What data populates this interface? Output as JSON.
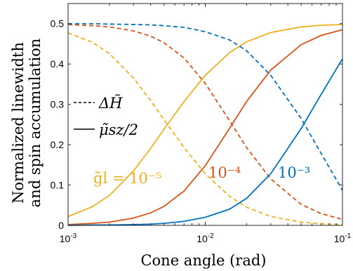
{
  "chart_data": {
    "type": "line",
    "title": "",
    "xlabel": "Cone angle (rad)",
    "ylabel_line1": "Normalized linewidth",
    "ylabel_line2": "and spin accumulation",
    "xscale": "log",
    "xlim": [
      0.001,
      0.1
    ],
    "ylim": [
      0,
      0.55
    ],
    "xticks": [
      {
        "value": 0.001,
        "base": "10",
        "exp": "-3"
      },
      {
        "value": 0.01,
        "base": "10",
        "exp": "-2"
      },
      {
        "value": 0.1,
        "base": "10",
        "exp": "-1"
      }
    ],
    "yticks": [
      {
        "value": 0,
        "label": "0"
      },
      {
        "value": 0.1,
        "label": "0.1"
      },
      {
        "value": 0.2,
        "label": "0.2"
      },
      {
        "value": 0.3,
        "label": "0.3"
      },
      {
        "value": 0.4,
        "label": "0.4"
      },
      {
        "value": 0.5,
        "label": "0.5"
      }
    ],
    "grid": false,
    "legend": {
      "placement": "middle-left",
      "entries": [
        {
          "style": "dashed",
          "label": "ΔH̃"
        },
        {
          "style": "solid",
          "label": "μ̃sz/2"
        }
      ]
    },
    "annotations": [
      {
        "text": "g̃l = 10⁻⁵",
        "color": "#EDB120"
      },
      {
        "text": "10⁻⁴",
        "color": "#D95319"
      },
      {
        "text": "10⁻³",
        "color": "#0072BD"
      }
    ],
    "series": [
      {
        "color": "#EDB120",
        "style": "solid",
        "x": [
          0.001,
          0.0015,
          0.002,
          0.003,
          0.004,
          0.005,
          0.007,
          0.01,
          0.015,
          0.02,
          0.03,
          0.05,
          0.07,
          0.1
        ],
        "values": [
          0.022,
          0.046,
          0.074,
          0.135,
          0.191,
          0.238,
          0.307,
          0.372,
          0.428,
          0.455,
          0.478,
          0.492,
          0.496,
          0.498
        ]
      },
      {
        "color": "#EDB120",
        "style": "dashed",
        "x": [
          0.001,
          0.0015,
          0.002,
          0.003,
          0.004,
          0.005,
          0.007,
          0.01,
          0.015,
          0.02,
          0.03,
          0.05,
          0.07,
          0.1
        ],
        "values": [
          0.477,
          0.454,
          0.426,
          0.365,
          0.309,
          0.262,
          0.193,
          0.128,
          0.072,
          0.045,
          0.022,
          0.008,
          0.004,
          0.002
        ]
      },
      {
        "color": "#D95319",
        "style": "solid",
        "x": [
          0.001,
          0.0015,
          0.002,
          0.003,
          0.004,
          0.005,
          0.007,
          0.01,
          0.015,
          0.02,
          0.03,
          0.05,
          0.07,
          0.1
        ],
        "values": [
          0.002,
          0.005,
          0.008,
          0.018,
          0.031,
          0.047,
          0.085,
          0.148,
          0.24,
          0.307,
          0.385,
          0.448,
          0.471,
          0.485
        ]
      },
      {
        "color": "#D95319",
        "style": "dashed",
        "x": [
          0.001,
          0.0015,
          0.002,
          0.003,
          0.004,
          0.005,
          0.007,
          0.01,
          0.015,
          0.02,
          0.03,
          0.05,
          0.07,
          0.1
        ],
        "values": [
          0.498,
          0.495,
          0.492,
          0.482,
          0.469,
          0.453,
          0.415,
          0.352,
          0.26,
          0.193,
          0.115,
          0.052,
          0.029,
          0.015
        ]
      },
      {
        "color": "#0072BD",
        "style": "solid",
        "x": [
          0.001,
          0.0015,
          0.002,
          0.003,
          0.004,
          0.005,
          0.007,
          0.01,
          0.015,
          0.02,
          0.03,
          0.05,
          0.07,
          0.1
        ],
        "values": [
          0.0,
          0.001,
          0.001,
          0.002,
          0.003,
          0.005,
          0.01,
          0.02,
          0.04,
          0.067,
          0.128,
          0.24,
          0.325,
          0.413
        ]
      },
      {
        "color": "#0072BD",
        "style": "dashed",
        "x": [
          0.001,
          0.0015,
          0.002,
          0.003,
          0.004,
          0.005,
          0.007,
          0.01,
          0.015,
          0.02,
          0.03,
          0.05,
          0.07,
          0.1
        ],
        "values": [
          0.5,
          0.5,
          0.499,
          0.498,
          0.497,
          0.495,
          0.491,
          0.48,
          0.46,
          0.433,
          0.372,
          0.265,
          0.178,
          0.087
        ]
      }
    ]
  }
}
